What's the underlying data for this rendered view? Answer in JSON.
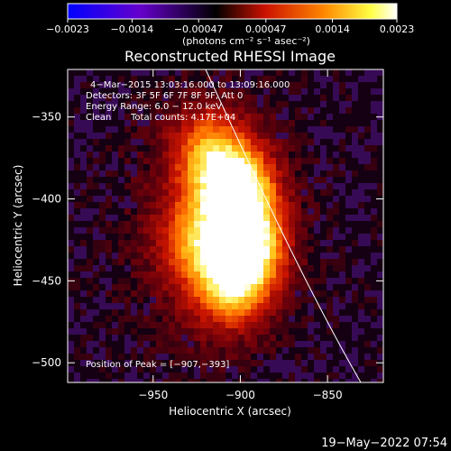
{
  "chart_data": {
    "type": "heatmap",
    "title": "Reconstructed RHESSI Image",
    "xlabel": "Heliocentric X (arcsec)",
    "ylabel": "Heliocentric Y (arcsec)",
    "x_ticks": [
      "−950",
      "−900",
      "−850"
    ],
    "x_tick_values": [
      -950,
      -900,
      -850
    ],
    "y_ticks": [
      "−350",
      "−400",
      "−450",
      "−500"
    ],
    "y_tick_values": [
      -350,
      -400,
      -450,
      -500
    ],
    "xlim": [
      -999,
      -818
    ],
    "ylim": [
      -512,
      -321
    ],
    "colorbar": {
      "ticks": [
        "−0.0023",
        "−0.0014",
        "−0.00047",
        "0.00047",
        "0.0014",
        "0.0023"
      ],
      "tick_values": [
        -0.0023,
        -0.0014,
        -0.00047,
        0.00047,
        0.0014,
        0.0023
      ],
      "range": [
        -0.0023,
        0.0023
      ],
      "units": "(photons cm⁻² s⁻¹ asec⁻²)",
      "colors": [
        "#0000ff",
        "#6600cc",
        "#000000",
        "#cc1100",
        "#ff8800",
        "#ffff44",
        "#ffffff"
      ]
    },
    "annotations": [
      "4−Mar−2015 13:03:16.000 to 13:09:16.000",
      "Detectors: 3F 5F 6F 7F 8F 9F, Att 0",
      "Energy Range: 6.0 − 12.0 keV",
      "Clean",
      "Total counts: 4.17E+04"
    ],
    "peak_label": "Position of Peak = [−907,−393]",
    "peak": {
      "x": -907,
      "y": -393
    },
    "sources": [
      {
        "x": -902,
        "y": -395,
        "value": 0.0023
      },
      {
        "x": -895,
        "y": -428,
        "value": 0.0019
      },
      {
        "x": -905,
        "y": -450,
        "value": 0.0017
      },
      {
        "x": -918,
        "y": -372,
        "value": 0.0012
      },
      {
        "x": -925,
        "y": -425,
        "value": 0.0011
      }
    ]
  },
  "footer": {
    "timestamp": "19−May−2022 07:54"
  }
}
